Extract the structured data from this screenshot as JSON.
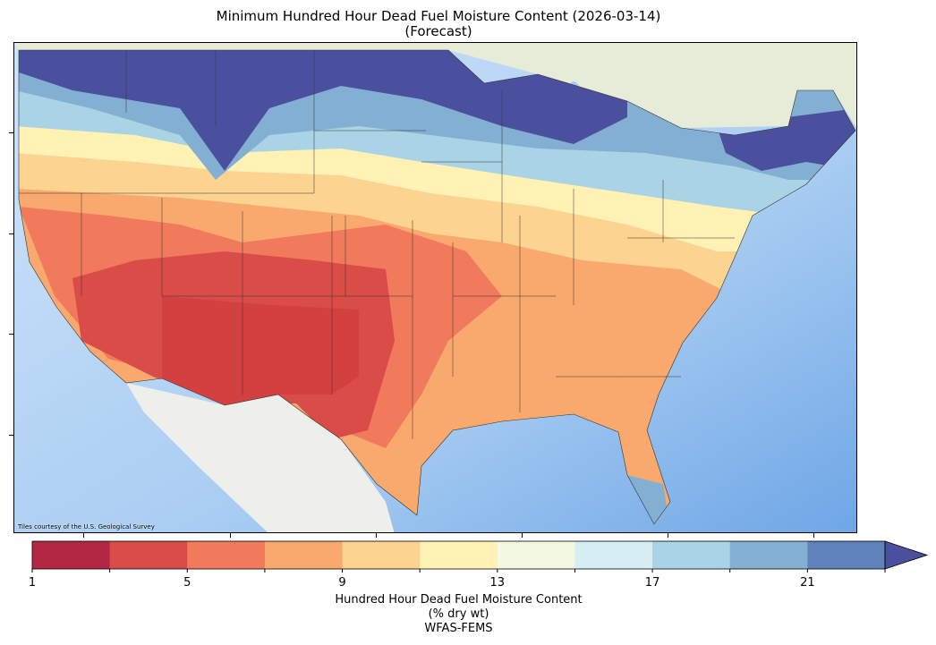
{
  "title": "Minimum Hundred Hour Dead Fuel Moisture Content (2026-03-14)",
  "subtitle": "(Forecast)",
  "map": {
    "attribution": "Tiles courtesy of the U.S. Geological Survey",
    "colors": {
      "ocean": "#a9cdf2",
      "canada": "#e6ecd8",
      "mexico": "#eeeeea",
      "extreme_wet": "#4a4f9e"
    }
  },
  "colorbar": {
    "bounds": [
      1,
      3,
      5,
      7,
      9,
      11,
      13,
      15,
      17,
      19,
      21,
      23
    ],
    "colors": [
      "#b32745",
      "#d94c47",
      "#f07a5b",
      "#f9a96d",
      "#fdd390",
      "#fff2b4",
      "#f3f9e0",
      "#d6edf4",
      "#abd3e6",
      "#83b0d2",
      "#5f82bc"
    ],
    "extend_color": "#4a4f9e",
    "ticks": [
      "1",
      "5",
      "9",
      "13",
      "17",
      "21"
    ],
    "label_lines": [
      "Hundred Hour Dead Fuel Moisture Content",
      "(% dry wt)",
      "WFAS-FEMS"
    ]
  }
}
